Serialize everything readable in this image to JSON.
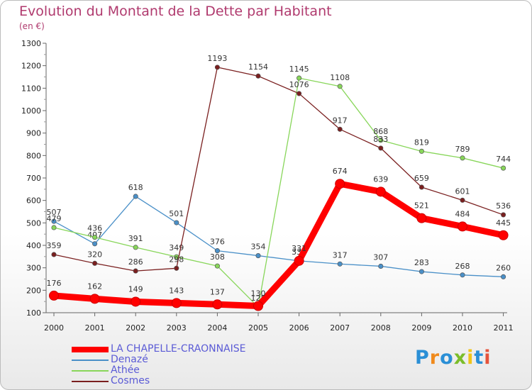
{
  "header": {
    "title": "Evolution du Montant de la Dette par Habitant",
    "subtitle": "(en €)"
  },
  "brand": {
    "letters": [
      "P",
      "r",
      "o",
      "x",
      "i",
      "t",
      "i"
    ],
    "colors": [
      "#2a8fd6",
      "#f08a1c",
      "#2a8fd6",
      "#7bbd2a",
      "#f0c419",
      "#2a8fd6",
      "#e5533b"
    ]
  },
  "chart_data": {
    "type": "line",
    "categories": [
      "2000",
      "2001",
      "2002",
      "2003",
      "2004",
      "2005",
      "2006",
      "2007",
      "2008",
      "2009",
      "2010",
      "2011"
    ],
    "ylim": [
      100,
      1300
    ],
    "yticks": [
      "100",
      "200",
      "300",
      "400",
      "500",
      "600",
      "700",
      "800",
      "900",
      "1000",
      "1100",
      "1200",
      "1300"
    ],
    "grid": false,
    "legend_position": "bottom-left",
    "series": [
      {
        "name": "LA CHAPELLE-CRAONNAISE",
        "color": "#ff0000",
        "values": [
          176,
          162,
          149,
          143,
          137,
          130,
          331,
          674,
          639,
          521,
          484,
          445
        ]
      },
      {
        "name": "Denazé",
        "color": "#4a90c8",
        "values": [
          507,
          407,
          618,
          501,
          376,
          354,
          331,
          317,
          307,
          283,
          268,
          260
        ]
      },
      {
        "name": "Athée",
        "color": "#88d65a",
        "values": [
          479,
          436,
          391,
          349,
          308,
          125,
          1145,
          1108,
          868,
          819,
          789,
          744
        ]
      },
      {
        "name": "Cosmes",
        "color": "#7a1f1f",
        "values": [
          359,
          320,
          286,
          298,
          1193,
          1154,
          1076,
          917,
          833,
          659,
          601,
          536
        ]
      }
    ]
  }
}
